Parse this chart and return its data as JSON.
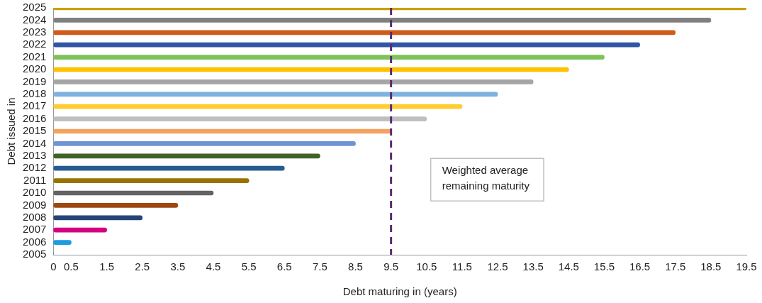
{
  "chart_data": {
    "type": "bar",
    "orientation": "horizontal",
    "xlabel": "Debt maturing in (years)",
    "ylabel": "Debt issued in",
    "categories": [
      "2025",
      "2024",
      "2023",
      "2022",
      "2021",
      "2020",
      "2019",
      "2018",
      "2017",
      "2016",
      "2015",
      "2014",
      "2013",
      "2012",
      "2011",
      "2010",
      "2009",
      "2008",
      "2007",
      "2006",
      "2005"
    ],
    "values": [
      19.5,
      18.5,
      17.5,
      16.5,
      15.5,
      14.5,
      13.5,
      12.5,
      11.5,
      10.5,
      9.5,
      8.5,
      7.5,
      6.5,
      5.5,
      4.5,
      3.5,
      2.5,
      1.5,
      0.5,
      0
    ],
    "colors": [
      "#c9a000",
      "#808080",
      "#d05a1a",
      "#2f55a4",
      "#7dc35b",
      "#ffc000",
      "#a5a5a5",
      "#7fb1e0",
      "#ffcc33",
      "#bfbfbf",
      "#f4a261",
      "#6f93d5",
      "#3f6428",
      "#265c91",
      "#997300",
      "#636363",
      "#9e480e",
      "#264478",
      "#d4007f",
      "#1b9ce0",
      "#4472c4"
    ],
    "xlim": [
      0,
      19.5
    ],
    "xticks": [
      0,
      0.5,
      1.5,
      2.5,
      3.5,
      4.5,
      5.5,
      6.5,
      7.5,
      8.5,
      9.5,
      10.5,
      11.5,
      12.5,
      13.5,
      14.5,
      15.5,
      16.5,
      17.5,
      18.5,
      19.5
    ],
    "grid": false,
    "legend": false,
    "annotations": [
      "Weighted average remaining maturity"
    ],
    "ref_lines": [
      {
        "axis": "x",
        "value": 9.5,
        "color": "#5b2a6e",
        "line_style": "dashed"
      }
    ]
  }
}
